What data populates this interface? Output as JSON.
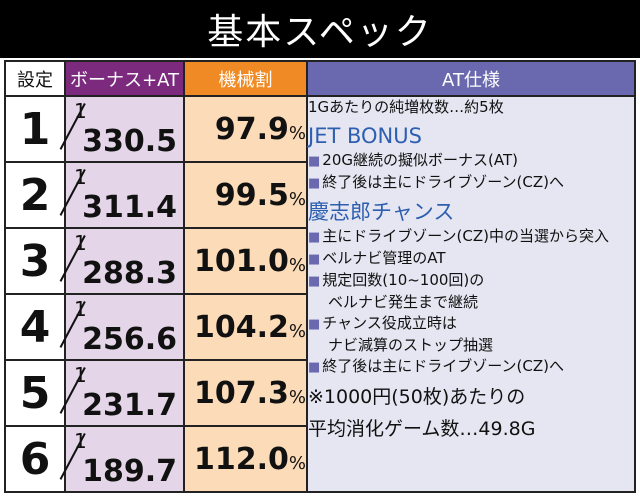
{
  "title": "基本スペック",
  "headers": {
    "setting": "設定",
    "bonus": "ボーナス+AT",
    "rate": "機械割",
    "at": "AT仕様"
  },
  "fraction_numerator": "1",
  "percent_sign": "%",
  "rows": [
    {
      "setting": "1",
      "bonus": "330.5",
      "rate": "97.9"
    },
    {
      "setting": "2",
      "bonus": "311.4",
      "rate": "99.5"
    },
    {
      "setting": "3",
      "bonus": "288.3",
      "rate": "101.0"
    },
    {
      "setting": "4",
      "bonus": "256.6",
      "rate": "104.2"
    },
    {
      "setting": "5",
      "bonus": "231.7",
      "rate": "107.3"
    },
    {
      "setting": "6",
      "bonus": "189.7",
      "rate": "112.0"
    }
  ],
  "at_spec": {
    "intro": "1Gあたりの純増枚数…約5枚",
    "jet_heading": "JET BONUS",
    "jet_items": [
      "20G継続の擬似ボーナス(AT)",
      "終了後は主にドライブゾーン(CZ)へ"
    ],
    "chance_heading": "慶志郎チャンス",
    "chance_items": [
      "主にドライブゾーン(CZ)中の当選から突入",
      "ベルナビ管理のAT"
    ],
    "chance_item3_line1": "規定回数(10~100回)の",
    "chance_item3_line2": "ベルナビ発生まで継続",
    "chance_item4_line1": "チャンス役成立時は",
    "chance_item4_line2": "ナビ減算のストップ抽選",
    "chance_item5": "終了後は主にドライブゾーン(CZ)へ",
    "note_line1": "※1000円(50枚)あたりの",
    "note_line2": "平均消化ゲーム数…49.8G"
  }
}
